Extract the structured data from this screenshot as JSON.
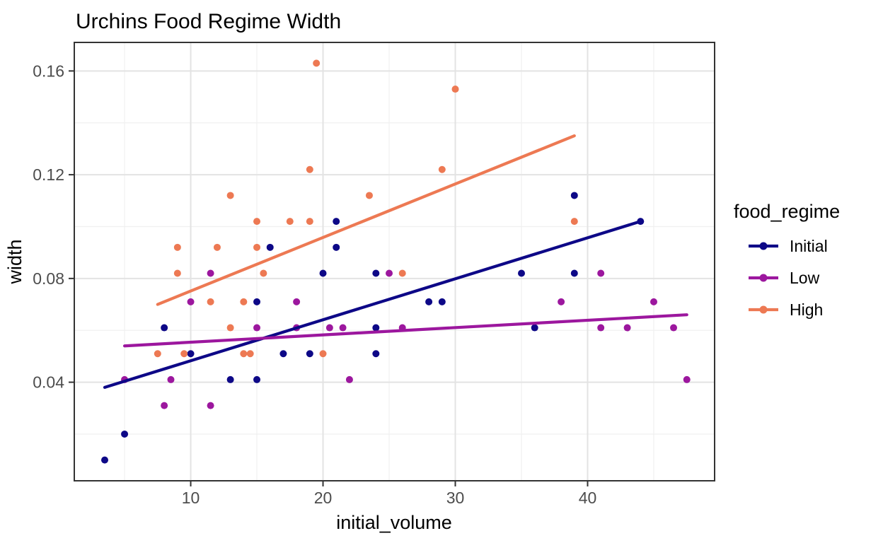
{
  "title": "Urchins Food Regime Width",
  "chart_data": {
    "type": "scatter",
    "title": "Urchins Food Regime Width",
    "xlabel": "initial_volume",
    "ylabel": "width",
    "xlim": [
      1.2,
      49.6
    ],
    "ylim": [
      0.002,
      0.171
    ],
    "x_ticks": [
      10,
      20,
      30,
      40
    ],
    "x_tick_labels": [
      "10",
      "20",
      "30",
      "40"
    ],
    "x_minor_ticks": [
      5,
      15,
      25,
      35,
      45
    ],
    "y_ticks": [
      0.04,
      0.08,
      0.12,
      0.16
    ],
    "y_tick_labels": [
      "0.04",
      "0.08",
      "0.12",
      "0.16"
    ],
    "y_minor_ticks": [
      0.02,
      0.06,
      0.1,
      0.14
    ],
    "grid": true,
    "panel_border": true,
    "colors": {
      "grid_major": "#e3e3e3",
      "grid_minor": "#f0f0f0",
      "panel_border": "#333333",
      "tick": "#333333",
      "tick_text": "#4d4d4d"
    },
    "legend": {
      "title": "food_regime",
      "position": "right",
      "entries": [
        "Initial",
        "Low",
        "High"
      ]
    },
    "series": [
      {
        "name": "Initial",
        "color": "#0D0887",
        "points": [
          [
            3.5,
            0.01
          ],
          [
            5,
            0.02
          ],
          [
            8,
            0.061
          ],
          [
            10,
            0.051
          ],
          [
            13,
            0.041
          ],
          [
            15,
            0.041
          ],
          [
            15,
            0.071
          ],
          [
            16,
            0.092
          ],
          [
            17,
            0.051
          ],
          [
            19,
            0.051
          ],
          [
            20,
            0.082
          ],
          [
            21,
            0.092
          ],
          [
            21,
            0.102
          ],
          [
            24,
            0.051
          ],
          [
            24,
            0.061
          ],
          [
            24,
            0.082
          ],
          [
            28,
            0.071
          ],
          [
            29,
            0.071
          ],
          [
            35,
            0.082
          ],
          [
            36,
            0.061
          ],
          [
            39,
            0.082
          ],
          [
            39,
            0.112
          ],
          [
            44,
            0.102
          ]
        ],
        "trend": [
          [
            3.5,
            0.038
          ],
          [
            44,
            0.102
          ]
        ]
      },
      {
        "name": "Low",
        "color": "#9C179E",
        "points": [
          [
            5,
            0.041
          ],
          [
            8,
            0.031
          ],
          [
            8.5,
            0.041
          ],
          [
            10,
            0.071
          ],
          [
            11.5,
            0.031
          ],
          [
            11.5,
            0.082
          ],
          [
            15,
            0.061
          ],
          [
            18,
            0.061
          ],
          [
            18,
            0.071
          ],
          [
            20.5,
            0.061
          ],
          [
            21.5,
            0.061
          ],
          [
            22,
            0.041
          ],
          [
            25,
            0.082
          ],
          [
            26,
            0.061
          ],
          [
            38,
            0.071
          ],
          [
            41,
            0.061
          ],
          [
            41,
            0.082
          ],
          [
            43,
            0.061
          ],
          [
            45,
            0.071
          ],
          [
            46.5,
            0.061
          ],
          [
            47.5,
            0.041
          ]
        ],
        "trend": [
          [
            5,
            0.054
          ],
          [
            47.5,
            0.066
          ]
        ]
      },
      {
        "name": "High",
        "color": "#ED7953",
        "points": [
          [
            7.5,
            0.051
          ],
          [
            9,
            0.082
          ],
          [
            9,
            0.092
          ],
          [
            9.5,
            0.051
          ],
          [
            11.5,
            0.071
          ],
          [
            12,
            0.092
          ],
          [
            13,
            0.061
          ],
          [
            13,
            0.112
          ],
          [
            14,
            0.051
          ],
          [
            14,
            0.071
          ],
          [
            14.5,
            0.051
          ],
          [
            15,
            0.092
          ],
          [
            15,
            0.102
          ],
          [
            15.5,
            0.082
          ],
          [
            17.5,
            0.102
          ],
          [
            19,
            0.102
          ],
          [
            19,
            0.122
          ],
          [
            19.5,
            0.163
          ],
          [
            20,
            0.051
          ],
          [
            23.5,
            0.112
          ],
          [
            26,
            0.082
          ],
          [
            29,
            0.122
          ],
          [
            30,
            0.153
          ],
          [
            39,
            0.102
          ]
        ],
        "trend": [
          [
            7.5,
            0.07
          ],
          [
            39,
            0.135
          ]
        ]
      }
    ]
  }
}
